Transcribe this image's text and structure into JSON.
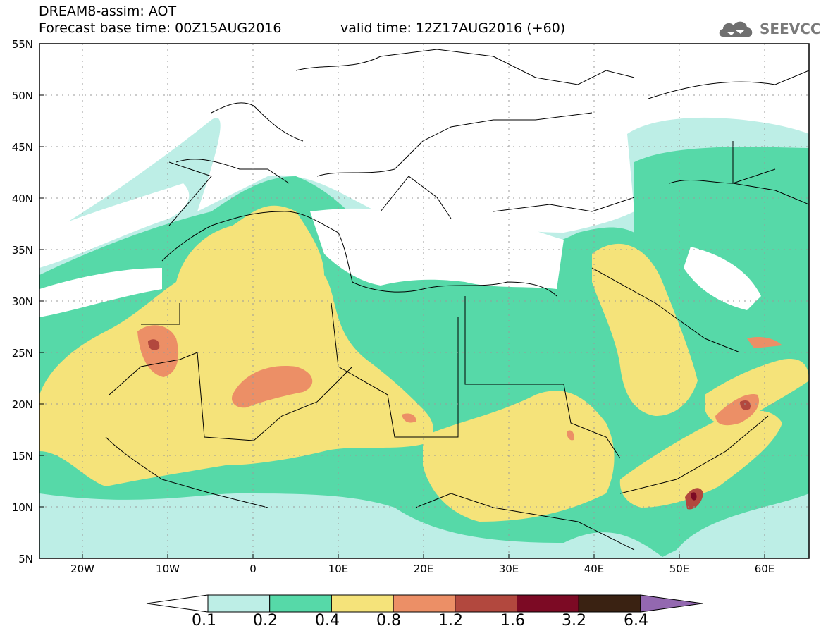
{
  "header": {
    "title": "DREAM8-assim: AOT",
    "base_time": "Forecast base time: 00Z15AUG2016",
    "valid_time": "valid time: 12Z17AUG2016 (+60)"
  },
  "logo": {
    "text": "SEEVCCC",
    "icon": "cloud-icon",
    "color": "#7a7a7a"
  },
  "map": {
    "lon_range": [
      -25,
      65
    ],
    "lat_range": [
      5,
      55
    ],
    "x_ticks": [
      "20W",
      "10W",
      "0",
      "10E",
      "20E",
      "30E",
      "40E",
      "50E",
      "60E"
    ],
    "y_ticks": [
      "55N",
      "50N",
      "45N",
      "40N",
      "35N",
      "30N",
      "25N",
      "20N",
      "15N",
      "10N",
      "5N"
    ]
  },
  "colorbar": {
    "labels": [
      "0.1",
      "0.2",
      "0.4",
      "0.8",
      "1.2",
      "1.6",
      "3.2",
      "6.4"
    ],
    "colors": [
      "#ffffff",
      "#bdeee6",
      "#56d9a8",
      "#f5e37a",
      "#ec8f66",
      "#b2483e",
      "#7c0a24",
      "#3a2212",
      "#9368b0"
    ]
  }
}
